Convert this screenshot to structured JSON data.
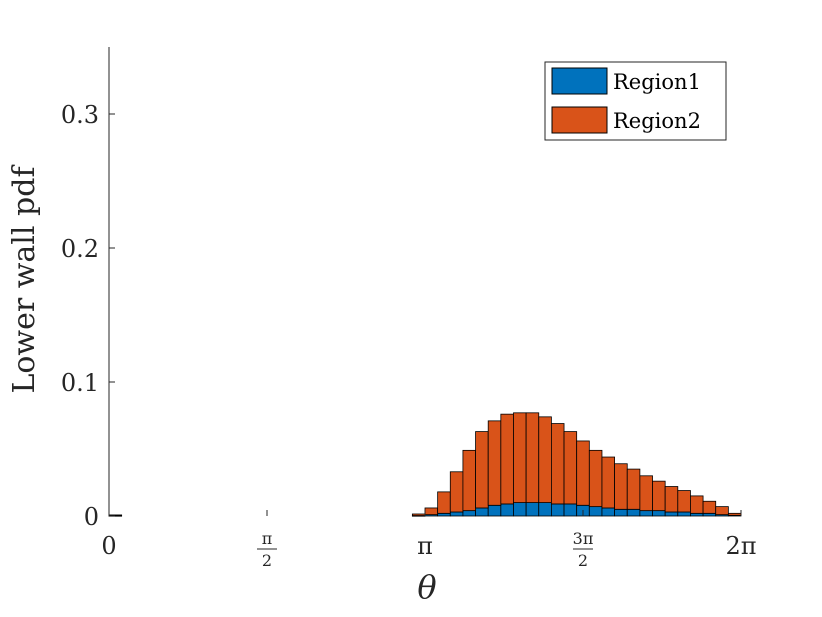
{
  "chart_data": {
    "type": "bar",
    "stacked": true,
    "title": "",
    "xlabel": "θ",
    "ylabel": "Lower wall pdf",
    "xlim": [
      0,
      6.283185
    ],
    "ylim": [
      0,
      0.35
    ],
    "xticks": [
      {
        "value": 0,
        "label": "0"
      },
      {
        "value": 1.570796,
        "numerator": "π",
        "denominator": "2"
      },
      {
        "value": 3.141593,
        "label": "π"
      },
      {
        "value": 4.712389,
        "numerator": "3π",
        "denominator": "2"
      },
      {
        "value": 6.283185,
        "label": "2π"
      }
    ],
    "yticks": [
      {
        "value": 0,
        "label": "0"
      },
      {
        "value": 0.1,
        "label": "0.1"
      },
      {
        "value": 0.2,
        "label": "0.2"
      },
      {
        "value": 0.3,
        "label": "0.3"
      }
    ],
    "bins": 50,
    "bin_width": 0.125664,
    "series": [
      {
        "name": "Region1",
        "color": "#0072BD",
        "values": [
          0.0003,
          0,
          0,
          0,
          0,
          0,
          0,
          0,
          0,
          0,
          0,
          0,
          0,
          0,
          0,
          0,
          0,
          0,
          0,
          0,
          0,
          0,
          0,
          0,
          0.0003,
          0.001,
          0.002,
          0.003,
          0.004,
          0.006,
          0.008,
          0.009,
          0.01,
          0.01,
          0.01,
          0.009,
          0.009,
          0.008,
          0.007,
          0.006,
          0.005,
          0.005,
          0.004,
          0.004,
          0.003,
          0.003,
          0.002,
          0.002,
          0.001,
          0.0005
        ]
      },
      {
        "name": "Region2",
        "color": "#D95319",
        "values": [
          0.0005,
          0,
          0,
          0,
          0,
          0,
          0,
          0,
          0,
          0,
          0,
          0,
          0,
          0,
          0,
          0,
          0,
          0,
          0,
          0,
          0,
          0,
          0,
          0,
          0.0012,
          0.005,
          0.016,
          0.03,
          0.045,
          0.057,
          0.063,
          0.067,
          0.067,
          0.067,
          0.064,
          0.06,
          0.054,
          0.048,
          0.042,
          0.038,
          0.034,
          0.03,
          0.026,
          0.022,
          0.019,
          0.016,
          0.013,
          0.009,
          0.006,
          0.0015
        ]
      }
    ],
    "legend": {
      "position": "top-right"
    },
    "grid": false
  }
}
